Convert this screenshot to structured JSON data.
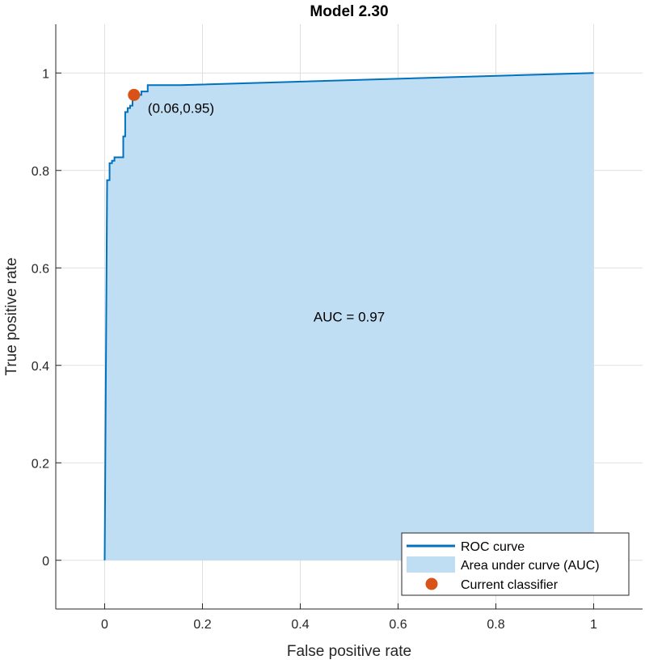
{
  "chart_data": {
    "type": "area",
    "title": "Model 2.30",
    "xlabel": "False positive rate",
    "ylabel": "True positive rate",
    "xlim": [
      -0.1,
      1.1
    ],
    "ylim": [
      -0.1,
      1.1
    ],
    "xticks": [
      0,
      0.2,
      0.4,
      0.6,
      0.8,
      1
    ],
    "xtick_labels": [
      "0",
      "0.2",
      "0.4",
      "0.6",
      "0.8",
      "1"
    ],
    "yticks": [
      0,
      0.2,
      0.4,
      0.6,
      0.8,
      1
    ],
    "ytick_labels": [
      "0",
      "0.2",
      "0.4",
      "0.6",
      "0.8",
      "1"
    ],
    "grid": true,
    "legend_position": "bottom-right",
    "series": [
      {
        "name": "ROC curve",
        "color": "#0072BD",
        "x": [
          0,
          0.005,
          0.01,
          0.01,
          0.015,
          0.015,
          0.02,
          0.02,
          0.038,
          0.038,
          0.042,
          0.042,
          0.047,
          0.047,
          0.052,
          0.052,
          0.057,
          0.057,
          0.06,
          0.075,
          0.075,
          0.088,
          0.088,
          0.155,
          1
        ],
        "y": [
          0,
          0.78,
          0.78,
          0.815,
          0.815,
          0.82,
          0.82,
          0.827,
          0.827,
          0.87,
          0.87,
          0.92,
          0.92,
          0.928,
          0.928,
          0.933,
          0.933,
          0.955,
          0.955,
          0.955,
          0.962,
          0.962,
          0.975,
          0.975,
          1
        ]
      }
    ],
    "area": {
      "name": "Area under curve (AUC)",
      "color": "#C0DEF3"
    },
    "current_classifier": {
      "name": "Current classifier",
      "x": 0.06,
      "y": 0.955,
      "label": "(0.06,0.95)",
      "color": "#D95319"
    },
    "annotation": {
      "text": "AUC = 0.97",
      "x": 0.5,
      "y": 0.5
    }
  }
}
